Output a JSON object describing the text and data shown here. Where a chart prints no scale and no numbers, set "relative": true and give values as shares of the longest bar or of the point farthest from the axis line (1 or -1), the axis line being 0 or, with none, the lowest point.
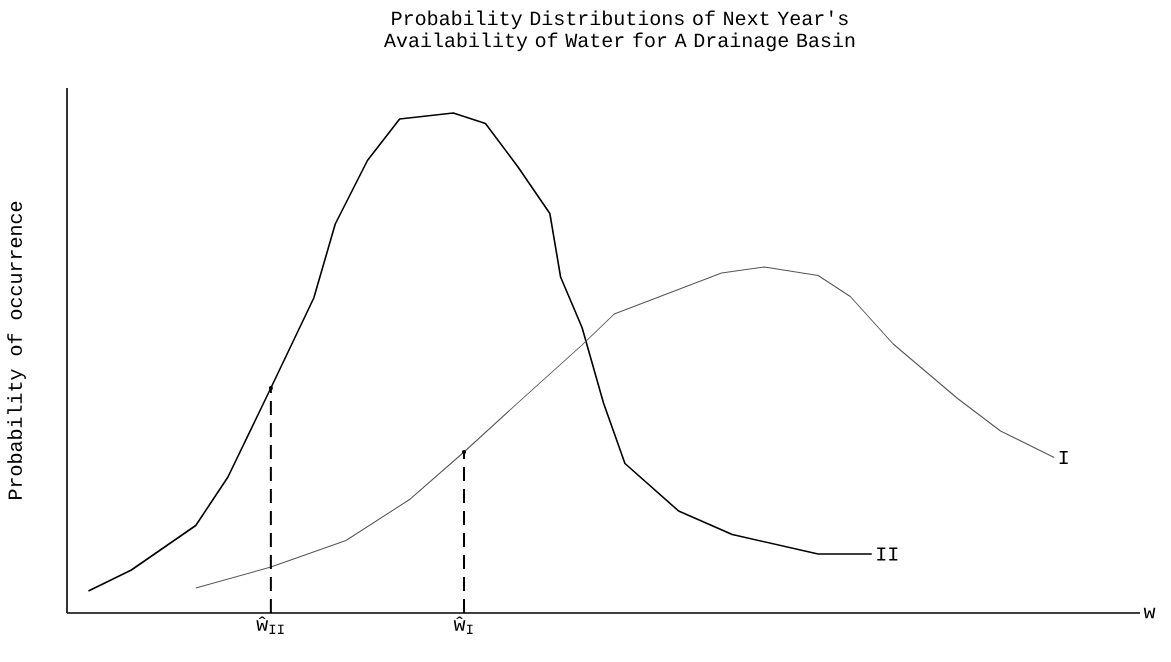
{
  "chart_data": {
    "type": "line",
    "title": "Probability Distributions of Next Year's Availability of Water for A Drainage Basin",
    "xlabel": "w",
    "ylabel": "Probability of occurrence",
    "relative": true,
    "categories": [
      null,
      null,
      null,
      null,
      null,
      null,
      null,
      null,
      null,
      null,
      null,
      null,
      null,
      null,
      null,
      null,
      null,
      null,
      null,
      "ŵ$_{II}$",
      null,
      null,
      null,
      null,
      null,
      null,
      null,
      null,
      null,
      null,
      null,
      null,
      null,
      null,
      null,
      null,
      null,
      "ŵ$_{I}$",
      null,
      null,
      null,
      null,
      null,
      null,
      null,
      null,
      null,
      null,
      null,
      null,
      null,
      null,
      null,
      null,
      null,
      null,
      null,
      null,
      null,
      null,
      null,
      null,
      null,
      null,
      null,
      null,
      null,
      null,
      null,
      null,
      null,
      null,
      null,
      null,
      null,
      null,
      null,
      null,
      null,
      null,
      null,
      null,
      null,
      null,
      null,
      null,
      null,
      null,
      null,
      null,
      null,
      null,
      null,
      null,
      null,
      null,
      null,
      null,
      null,
      null,
      null
    ],
    "series": [
      {
        "name": "II",
        "color": "#000000",
        "values": [
          null,
          null,
          0.044,
          null,
          null,
          null,
          0.086,
          null,
          null,
          null,
          null,
          null,
          0.175,
          null,
          null,
          0.272,
          null,
          null,
          null,
          0.45,
          null,
          null,
          null,
          0.63,
          null,
          0.778,
          null,
          null,
          0.905,
          null,
          null,
          0.988,
          null,
          null,
          null,
          null,
          1.0,
          null,
          null,
          0.979,
          null,
          null,
          0.893,
          null,
          null,
          0.799,
          0.672,
          null,
          0.571,
          null,
          0.42,
          null,
          0.299,
          null,
          null,
          null,
          null,
          0.204,
          null,
          null,
          null,
          null,
          0.157,
          null,
          null,
          null,
          null,
          null,
          null,
          null,
          0.118,
          null,
          null,
          null,
          null,
          0.118,
          null,
          null,
          null,
          null,
          null,
          null,
          null,
          null,
          null,
          null,
          null,
          null,
          null,
          null,
          null,
          null,
          null,
          null,
          null,
          null,
          null,
          null,
          null,
          null,
          null
        ]
      },
      {
        "name": "I",
        "color": "#555555",
        "values": [
          null,
          null,
          null,
          null,
          null,
          null,
          null,
          null,
          null,
          null,
          null,
          null,
          0.05,
          null,
          null,
          null,
          null,
          null,
          null,
          0.092,
          null,
          null,
          null,
          null,
          null,
          null,
          0.145,
          null,
          null,
          null,
          null,
          null,
          0.228,
          null,
          null,
          null,
          null,
          0.322,
          null,
          null,
          null,
          null,
          0.42,
          null,
          null,
          null,
          null,
          null,
          0.536,
          null,
          null,
          0.598,
          null,
          null,
          null,
          null,
          null,
          null,
          null,
          null,
          null,
          0.68,
          null,
          null,
          null,
          0.692,
          null,
          null,
          null,
          null,
          0.675,
          null,
          null,
          0.633,
          null,
          null,
          null,
          0.538,
          null,
          null,
          null,
          null,
          null,
          0.429,
          null,
          null,
          null,
          0.364,
          null,
          null,
          null,
          null,
          0.311,
          null,
          null,
          null,
          null,
          null,
          null,
          null,
          null
        ]
      },
      {
        "type": "lollipop",
        "marker": "none",
        "line_style": "dashed",
        "color": "#000000",
        "values": [
          null,
          null,
          null,
          null,
          null,
          null,
          null,
          null,
          null,
          null,
          null,
          null,
          null,
          null,
          null,
          null,
          null,
          null,
          null,
          0.45,
          null,
          null,
          null,
          null,
          null,
          null,
          null,
          null,
          null,
          null,
          null,
          null,
          null,
          null,
          null,
          null,
          null,
          null,
          null,
          null,
          null,
          null,
          null,
          null,
          null,
          null,
          null,
          null,
          null,
          null,
          null,
          null,
          null,
          null,
          null,
          null,
          null,
          null,
          null,
          null,
          null,
          null,
          null,
          null,
          null,
          null,
          null,
          null,
          null,
          null,
          null,
          null,
          null,
          null,
          null,
          null,
          null,
          null,
          null,
          null,
          null,
          null,
          null,
          null,
          null,
          null,
          null,
          null,
          null,
          null,
          null,
          null,
          null,
          null,
          null,
          null,
          null,
          null,
          null,
          null,
          null
        ]
      },
      {
        "type": "lollipop",
        "marker": "none",
        "line_style": "dashed",
        "color": "#000000",
        "values": [
          null,
          null,
          null,
          null,
          null,
          null,
          null,
          null,
          null,
          null,
          null,
          null,
          null,
          null,
          null,
          null,
          null,
          null,
          null,
          null,
          null,
          null,
          null,
          null,
          null,
          null,
          null,
          null,
          null,
          null,
          null,
          null,
          null,
          null,
          null,
          null,
          null,
          0.322,
          null,
          null,
          null,
          null,
          null,
          null,
          null,
          null,
          null,
          null,
          null,
          null,
          null,
          null,
          null,
          null,
          null,
          null,
          null,
          null,
          null,
          null,
          null,
          null,
          null,
          null,
          null,
          null,
          null,
          null,
          null,
          null,
          null,
          null,
          null,
          null,
          null,
          null,
          null,
          null,
          null,
          null,
          null,
          null,
          null,
          null,
          null,
          null,
          null,
          null,
          null,
          null,
          null,
          null,
          null,
          null,
          null,
          null,
          null,
          null,
          null,
          null,
          null
        ]
      }
    ]
  }
}
